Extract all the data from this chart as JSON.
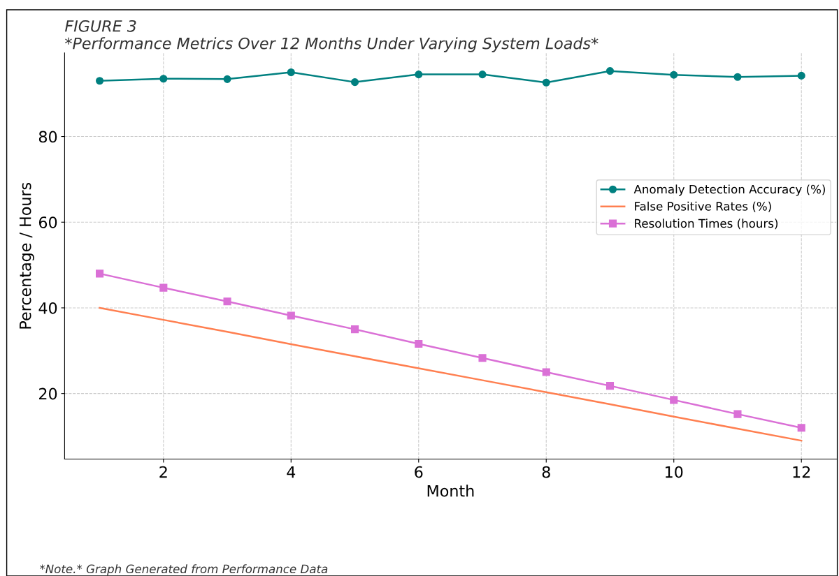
{
  "chart_data": {
    "type": "line",
    "title": "FIGURE 3",
    "subtitle": "*Performance Metrics Over 12 Months Under Varying System Loads*",
    "xlabel": "Month",
    "ylabel": "Percentage / Hours",
    "x": [
      1,
      2,
      3,
      4,
      5,
      6,
      7,
      8,
      9,
      10,
      11,
      12
    ],
    "series": [
      {
        "name": "Anomaly Detection Accuracy (%)",
        "color": "#008080",
        "marker": "circle",
        "values": [
          93.0,
          93.5,
          93.4,
          95.0,
          92.7,
          94.5,
          94.5,
          92.6,
          95.3,
          94.4,
          93.9,
          94.2
        ]
      },
      {
        "name": "False Positive Rates (%)",
        "color": "#ff7f50",
        "marker": "none",
        "values": [
          40,
          37.2,
          34.4,
          31.5,
          28.7,
          25.9,
          23.1,
          20.3,
          17.5,
          14.6,
          11.8,
          9
        ]
      },
      {
        "name": "Resolution Times (hours)",
        "color": "#da70d6",
        "marker": "square",
        "values": [
          48,
          44.7,
          41.5,
          38.2,
          35,
          31.6,
          28.3,
          25,
          21.8,
          18.5,
          15.2,
          12
        ]
      }
    ],
    "xlim": [
      0.45,
      12.55
    ],
    "ylim": [
      4.7,
      99.5
    ],
    "xticks": [
      2,
      4,
      6,
      8,
      10,
      12
    ],
    "yticks": [
      20,
      40,
      60,
      80
    ],
    "grid": true,
    "legend": "right",
    "line_style": "solid",
    "annotations": [
      "*Note.* Graph Generated from Performance Data"
    ]
  }
}
